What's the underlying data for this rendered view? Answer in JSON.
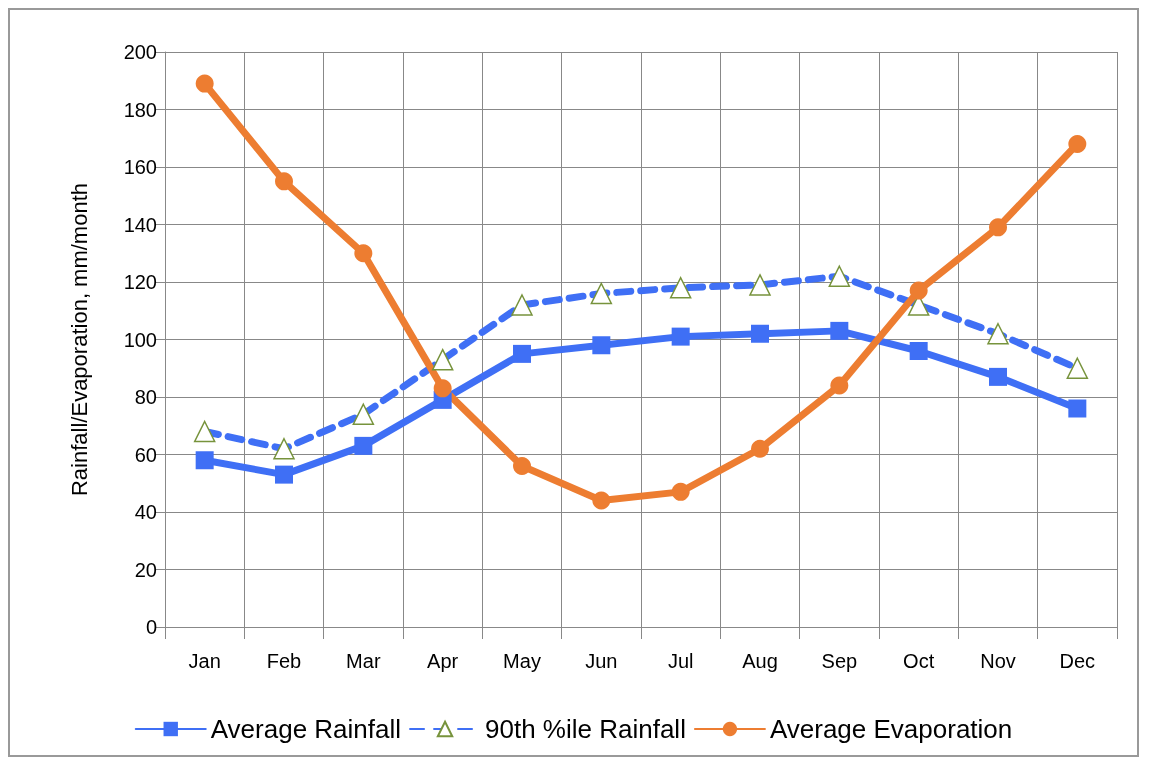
{
  "chart_data": {
    "type": "line",
    "ylabel": "Rainfall/Evaporation, mm/month",
    "categories": [
      "Jan",
      "Feb",
      "Mar",
      "Apr",
      "May",
      "Jun",
      "Jul",
      "Aug",
      "Sep",
      "Oct",
      "Nov",
      "Dec"
    ],
    "series": [
      {
        "name": "Average Rainfall",
        "color": "#3f6ff5",
        "marker": "square",
        "line_style": "solid",
        "values": [
          58,
          53,
          63,
          79,
          95,
          98,
          101,
          102,
          103,
          96,
          87,
          76
        ]
      },
      {
        "name": "90th %ile Rainfall",
        "color": "#3f6ff5",
        "marker": "triangle",
        "line_style": "dashed",
        "values": [
          68,
          62,
          74,
          93,
          112,
          116,
          118,
          119,
          122,
          112,
          102,
          90
        ]
      },
      {
        "name": "Average Evaporation",
        "color": "#ed7d31",
        "marker": "circle",
        "line_style": "solid",
        "values": [
          189,
          155,
          130,
          83,
          56,
          44,
          47,
          62,
          84,
          117,
          139,
          168
        ]
      }
    ],
    "ylim": [
      0,
      200
    ],
    "yticks": [
      0,
      20,
      40,
      60,
      80,
      100,
      120,
      140,
      160,
      180,
      200
    ],
    "grid": true,
    "legend": "bottom"
  }
}
